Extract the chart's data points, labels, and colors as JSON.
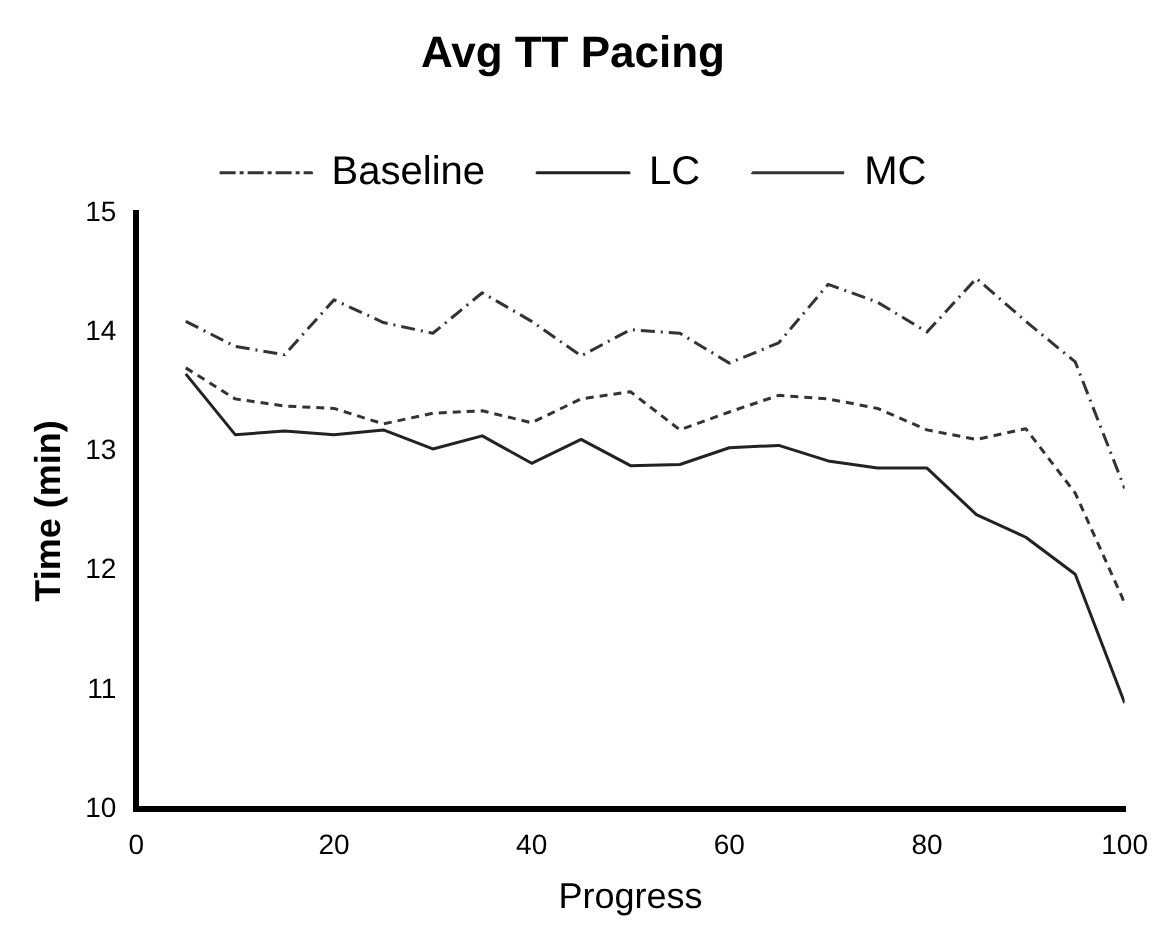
{
  "chart_data": {
    "type": "line",
    "title": "Avg TT Pacing",
    "xlabel": "Progress",
    "ylabel": "Time (min)",
    "x": [
      5,
      10,
      15,
      20,
      25,
      30,
      35,
      40,
      45,
      50,
      55,
      60,
      65,
      70,
      75,
      80,
      85,
      90,
      95,
      100
    ],
    "series": [
      {
        "name": "Baseline",
        "color": "#333333",
        "line_style": "dashdot",
        "values": [
          14.09,
          13.88,
          13.81,
          14.27,
          14.08,
          13.99,
          14.33,
          14.09,
          13.8,
          14.02,
          13.99,
          13.74,
          13.91,
          14.4,
          14.25,
          14.0,
          14.45,
          14.09,
          13.75,
          12.69
        ]
      },
      {
        "name": "LC",
        "color": "#222222",
        "line_style": "solid",
        "values": [
          13.65,
          13.14,
          13.17,
          13.14,
          13.18,
          13.02,
          13.13,
          12.9,
          13.1,
          12.88,
          12.89,
          13.03,
          13.05,
          12.92,
          12.86,
          12.86,
          12.47,
          12.28,
          11.97,
          10.89
        ]
      },
      {
        "name": "MC",
        "color": "#333333",
        "line_style": "dashed",
        "values": [
          13.7,
          13.44,
          13.38,
          13.36,
          13.23,
          13.32,
          13.34,
          13.24,
          13.44,
          13.5,
          13.18,
          13.33,
          13.47,
          13.44,
          13.36,
          13.18,
          13.1,
          13.19,
          12.65,
          11.73
        ]
      }
    ],
    "xlim": [
      0,
      100
    ],
    "xticks": [
      0,
      20,
      40,
      60,
      80,
      100
    ],
    "ylim": [
      10,
      15
    ],
    "yticks": [
      10,
      11,
      12,
      13,
      14,
      15
    ],
    "grid": false,
    "legend": "top",
    "marker": "none"
  }
}
